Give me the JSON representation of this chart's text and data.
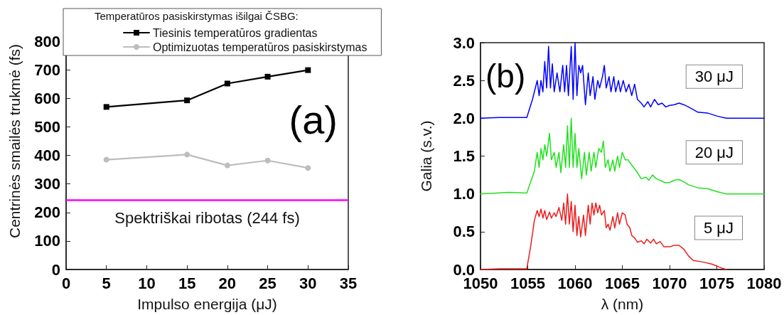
{
  "chart_data": [
    {
      "type": "line",
      "xlabel": "Impulso energija (μJ)",
      "ylabel": "Centrinės smailės trukmė (fs)",
      "legend_title": "Temperatūros pasiskirstymas išilgai ČSBG:",
      "annotations": [
        "(a)"
      ],
      "x": [
        5,
        15,
        20,
        25,
        30
      ],
      "series": [
        {
          "name": "Tiesinis temperatūros gradientas",
          "color": "#000000",
          "marker": "square",
          "values": [
            570,
            593,
            652,
            676,
            699
          ]
        },
        {
          "name": "Optimizuotas temperatūros pasiskirstymas",
          "color": "#bdbdbd",
          "marker": "circle",
          "values": [
            385,
            403,
            365,
            382,
            356
          ]
        }
      ],
      "ref_lines": [
        {
          "axis": "y",
          "value": 244,
          "label": "Spektriškai ribotas (244 fs)",
          "color": "#ff00ff"
        }
      ],
      "xlim": [
        0,
        35
      ],
      "xticks": [
        0,
        5,
        10,
        15,
        20,
        25,
        30,
        35
      ],
      "ylim": [
        0,
        900
      ],
      "yticks": [
        0,
        100,
        200,
        300,
        400,
        500,
        600,
        700,
        800
      ],
      "grid": false,
      "legend": "top"
    },
    {
      "type": "line",
      "xlabel": "λ (nm)",
      "ylabel": "Galia (s.v.)",
      "annotations": [
        "(b)"
      ],
      "marker": "none",
      "series": [
        {
          "name": "30 μJ",
          "color": "#0000ff",
          "x": [
            1050,
            1052,
            1054,
            1054.9,
            1055.5,
            1056,
            1056.2,
            1056.4,
            1056.6,
            1056.8,
            1057,
            1057.2,
            1057.4,
            1057.6,
            1057.8,
            1058.1,
            1058.4,
            1058.7,
            1058.9,
            1059.1,
            1059.3,
            1059.6,
            1059.8,
            1060,
            1060.2,
            1060.4,
            1060.6,
            1060.8,
            1061.1,
            1061.4,
            1061.6,
            1061.9,
            1062.1,
            1062.4,
            1062.6,
            1062.9,
            1063.1,
            1063.3,
            1063.6,
            1063.8,
            1064.1,
            1064.3,
            1064.6,
            1064.8,
            1065.1,
            1065.4,
            1065.7,
            1066,
            1066.3,
            1066.6,
            1067,
            1067.3,
            1067.7,
            1068,
            1068.4,
            1068.8,
            1069.2,
            1069.6,
            1070,
            1070.5,
            1071,
            1071.5,
            1072,
            1073,
            1074,
            1075,
            1076,
            1080
          ],
          "values": [
            2.0,
            2.01,
            2.01,
            2.01,
            2.25,
            2.5,
            2.3,
            2.5,
            2.35,
            2.75,
            2.4,
            2.95,
            2.4,
            2.72,
            2.35,
            2.6,
            2.35,
            2.7,
            2.35,
            2.7,
            2.3,
            2.95,
            2.25,
            3.0,
            2.3,
            2.7,
            2.6,
            2.7,
            2.18,
            2.6,
            2.3,
            2.55,
            2.25,
            2.5,
            2.4,
            2.55,
            2.7,
            2.4,
            2.55,
            2.35,
            2.55,
            2.35,
            2.5,
            2.35,
            2.5,
            2.35,
            2.45,
            2.3,
            2.45,
            2.25,
            2.2,
            2.15,
            2.22,
            2.15,
            2.25,
            2.18,
            2.2,
            2.15,
            2.17,
            2.18,
            2.2,
            2.18,
            2.15,
            2.08,
            2.07,
            2.03,
            2.0,
            2.0
          ]
        },
        {
          "name": "20 μJ",
          "color": "#22e01e",
          "x": [
            1050,
            1053,
            1054.9,
            1055.7,
            1056,
            1056.2,
            1056.4,
            1056.6,
            1056.8,
            1057,
            1057.3,
            1057.5,
            1057.8,
            1058,
            1058.3,
            1058.5,
            1058.8,
            1059,
            1059.2,
            1059.4,
            1059.6,
            1059.8,
            1060,
            1060.2,
            1060.4,
            1060.7,
            1061,
            1061.2,
            1061.5,
            1061.7,
            1062,
            1062.2,
            1062.5,
            1062.8,
            1063,
            1063.2,
            1063.5,
            1063.7,
            1064,
            1064.2,
            1064.5,
            1064.7,
            1065,
            1065.3,
            1065.6,
            1066,
            1066.5,
            1067,
            1067.5,
            1067.8,
            1068.2,
            1068.6,
            1069,
            1069.5,
            1070,
            1070.5,
            1071,
            1071.5,
            1072,
            1073,
            1074,
            1075,
            1076,
            1080
          ],
          "values": [
            1.0,
            1.02,
            1.01,
            1.3,
            1.55,
            1.35,
            1.6,
            1.45,
            1.65,
            1.5,
            1.8,
            1.45,
            1.55,
            1.35,
            1.55,
            1.28,
            1.65,
            1.35,
            1.9,
            1.35,
            2.0,
            1.35,
            1.8,
            1.35,
            1.6,
            1.2,
            1.55,
            1.25,
            1.55,
            1.3,
            1.55,
            1.35,
            1.6,
            1.55,
            1.7,
            1.35,
            1.45,
            1.3,
            1.45,
            1.3,
            1.5,
            1.35,
            1.55,
            1.45,
            1.45,
            1.38,
            1.3,
            1.2,
            1.22,
            1.18,
            1.25,
            1.2,
            1.18,
            1.15,
            1.15,
            1.18,
            1.19,
            1.16,
            1.12,
            1.08,
            1.07,
            1.03,
            1.0,
            1.0
          ]
        },
        {
          "name": "5 μJ",
          "color": "#ee1c1c",
          "x": [
            1050,
            1052,
            1054,
            1054.9,
            1055.3,
            1055.7,
            1056,
            1056.2,
            1056.4,
            1056.6,
            1056.8,
            1057,
            1057.3,
            1057.5,
            1057.8,
            1058,
            1058.3,
            1058.6,
            1058.8,
            1059,
            1059.2,
            1059.4,
            1059.6,
            1059.8,
            1060,
            1060.2,
            1060.4,
            1060.6,
            1060.9,
            1061.1,
            1061.4,
            1061.6,
            1061.8,
            1062,
            1062.2,
            1062.4,
            1062.6,
            1062.8,
            1063.1,
            1063.3,
            1063.5,
            1063.7,
            1064,
            1064.2,
            1064.5,
            1064.7,
            1065,
            1065.3,
            1065.5,
            1065.8,
            1066,
            1066.3,
            1066.6,
            1067,
            1067.3,
            1067.6,
            1068,
            1068.3,
            1068.6,
            1069,
            1069.4,
            1070,
            1070.5,
            1071,
            1071.5,
            1072,
            1072.5,
            1073.5,
            1074.5,
            1075.5,
            1076
          ],
          "values": [
            0,
            0.01,
            0.01,
            0.01,
            0.3,
            0.65,
            0.78,
            0.7,
            0.8,
            0.68,
            0.78,
            0.66,
            0.76,
            0.68,
            0.75,
            0.7,
            0.82,
            0.65,
            0.88,
            0.6,
            1.0,
            0.6,
            0.9,
            0.5,
            0.85,
            0.45,
            0.7,
            0.43,
            0.72,
            0.45,
            0.85,
            0.6,
            0.88,
            0.72,
            0.88,
            0.75,
            0.85,
            0.72,
            0.78,
            0.55,
            0.6,
            0.52,
            0.7,
            0.55,
            0.75,
            0.6,
            0.75,
            0.72,
            0.6,
            0.55,
            0.45,
            0.42,
            0.36,
            0.38,
            0.34,
            0.4,
            0.35,
            0.4,
            0.34,
            0.37,
            0.3,
            0.3,
            0.32,
            0.32,
            0.27,
            0.18,
            0.12,
            0.1,
            0.07,
            0.02,
            0
          ]
        }
      ],
      "xlim": [
        1050,
        1080
      ],
      "xticks": [
        1050,
        1055,
        1060,
        1065,
        1070,
        1075,
        1080
      ],
      "ylim": [
        0,
        3
      ],
      "yticks": [
        {
          "value": 0,
          "label": "0.0"
        },
        {
          "value": 0.5,
          "label": "0.5"
        },
        {
          "value": 1,
          "label": "1.0"
        },
        {
          "value": 1.5,
          "label": "1.5"
        },
        {
          "value": 2,
          "label": "2.0"
        },
        {
          "value": 2.5,
          "label": "2.5"
        },
        {
          "value": 3,
          "label": "3.0"
        }
      ],
      "grid": false,
      "legend": false
    }
  ]
}
